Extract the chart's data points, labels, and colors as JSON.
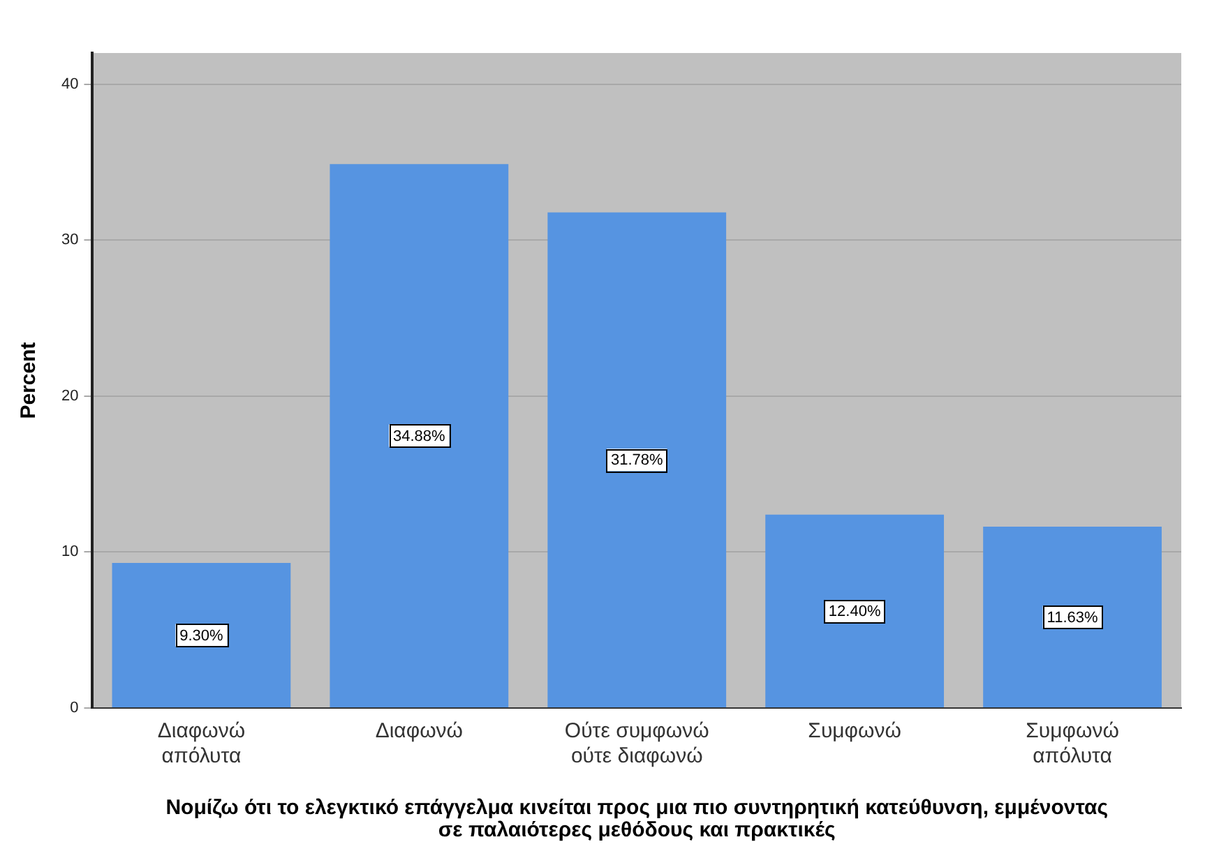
{
  "chart_data": {
    "type": "bar",
    "categories": [
      "Διαφωνώ απόλυτα",
      "Διαφωνώ",
      "Ούτε συμφωνώ ούτε διαφωνώ",
      "Συμφωνώ",
      "Συμφωνώ απόλυτα"
    ],
    "values": [
      9.3,
      34.88,
      31.78,
      12.4,
      11.63
    ],
    "value_labels": [
      "9.30%",
      "34.88%",
      "31.78%",
      "12.40%",
      "11.63%"
    ],
    "color": "#5694e1",
    "xlabel": "Νομίζω ότι το ελεγκτικό επάγγελμα κινείται προς μια πιο συντηρητική κατεύθυνση, εμμένοντας σε παλαιότερες μεθόδους και πρακτικές",
    "ylabel": "Percent",
    "ylim": [
      0,
      42
    ],
    "yticks": [
      0,
      10,
      20,
      30,
      40
    ],
    "grid": "y",
    "legend": false
  }
}
